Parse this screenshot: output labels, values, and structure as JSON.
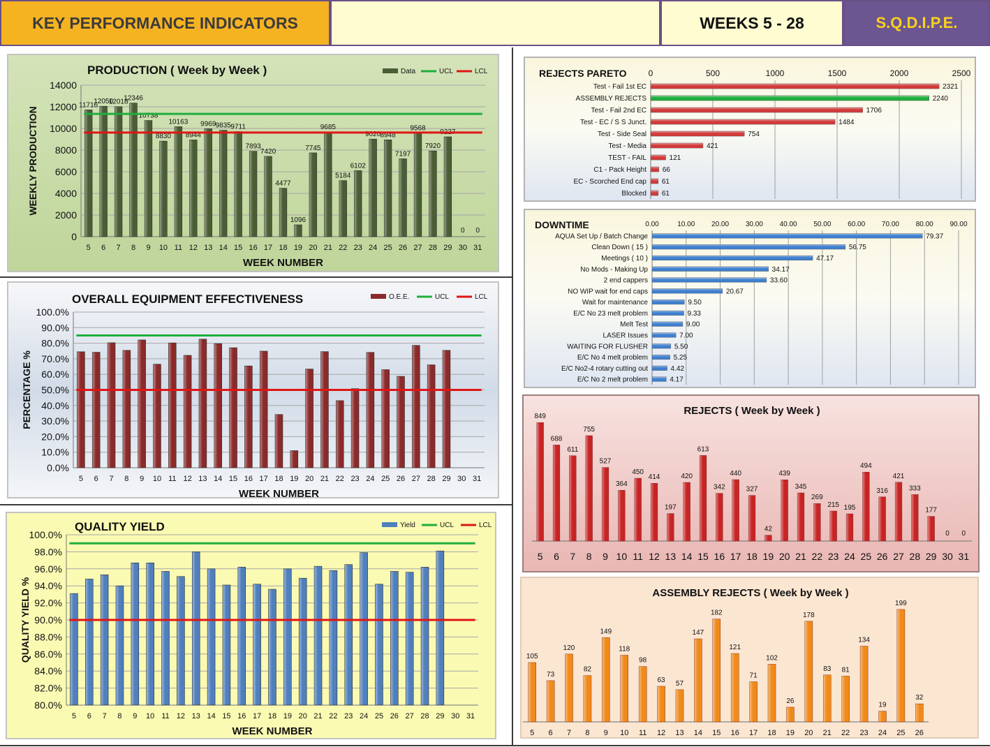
{
  "header": {
    "title": "KEY PERFORMANCE INDICATORS",
    "middle": "",
    "weeks": "WEEKS  5 - 28",
    "brand": "S.Q.D.I.P.E."
  },
  "chart_data": [
    {
      "id": "production",
      "type": "bar",
      "title": "PRODUCTION   ( Week by Week )",
      "xlabel": "WEEK NUMBER",
      "ylabel": "WEEKLY PRODUCTION",
      "categories": [
        "5",
        "6",
        "7",
        "8",
        "9",
        "10",
        "11",
        "12",
        "13",
        "14",
        "15",
        "16",
        "17",
        "18",
        "19",
        "20",
        "21",
        "22",
        "23",
        "24",
        "25",
        "26",
        "27",
        "28",
        "29",
        "30",
        "31"
      ],
      "values": [
        11716,
        12050,
        12018,
        12346,
        10738,
        8830,
        10163,
        8944,
        9969,
        9835,
        9711,
        7893,
        7420,
        4477,
        1096,
        7745,
        9685,
        5184,
        6102,
        9020,
        8948,
        7197,
        9568,
        7920,
        9227,
        0,
        0
      ],
      "ylim": [
        0,
        14000
      ],
      "yticks": [
        0,
        2000,
        4000,
        6000,
        8000,
        10000,
        12000,
        14000
      ],
      "ucl": 11350,
      "lcl": 9620,
      "legend": [
        "Data",
        "UCL",
        "LCL"
      ],
      "colors": {
        "bar": "#4a5e35",
        "ucl": "#1fae3e",
        "lcl": "#e01515"
      }
    },
    {
      "id": "oee",
      "type": "bar",
      "title": "OVERALL EQUIPMENT EFFECTIVENESS",
      "xlabel": "WEEK NUMBER",
      "ylabel": "PERCENTAGE  %",
      "categories": [
        "5",
        "6",
        "7",
        "8",
        "9",
        "10",
        "11",
        "12",
        "13",
        "14",
        "15",
        "16",
        "17",
        "18",
        "19",
        "20",
        "21",
        "22",
        "23",
        "24",
        "25",
        "26",
        "27",
        "28",
        "29",
        "30",
        "31"
      ],
      "values": [
        74.5,
        74.2,
        80.3,
        75.4,
        82.1,
        66.5,
        80.2,
        72.2,
        82.6,
        79.7,
        77.1,
        65.4,
        74.9,
        34.2,
        11.0,
        63.4,
        74.6,
        43.1,
        50.8,
        74.1,
        63.0,
        58.7,
        78.6,
        66.1,
        75.4,
        null,
        null
      ],
      "ylim": [
        0,
        100
      ],
      "yticks": [
        "0.0%",
        "10.0%",
        "20.0%",
        "30.0%",
        "40.0%",
        "50.0%",
        "60.0%",
        "70.0%",
        "80.0%",
        "90.0%",
        "100.0%"
      ],
      "ucl": 85,
      "lcl": 50,
      "legend": [
        "O.E.E.",
        "UCL",
        "LCL"
      ],
      "colors": {
        "bar": "#8b2a2a",
        "ucl": "#1fae3e",
        "lcl": "#e01515"
      }
    },
    {
      "id": "quality",
      "type": "bar",
      "title": "QUALITY YIELD",
      "xlabel": "WEEK NUMBER",
      "ylabel": "QUALITY YIELD  %",
      "categories": [
        "5",
        "6",
        "7",
        "8",
        "9",
        "10",
        "11",
        "12",
        "13",
        "14",
        "15",
        "16",
        "17",
        "18",
        "19",
        "20",
        "21",
        "22",
        "23",
        "24",
        "25",
        "26",
        "27",
        "28",
        "29",
        "30",
        "31"
      ],
      "values": [
        93.1,
        94.8,
        95.3,
        94.0,
        96.7,
        96.7,
        95.7,
        95.1,
        98.0,
        96.0,
        94.1,
        96.2,
        94.2,
        93.6,
        96.0,
        94.9,
        96.3,
        95.8,
        96.5,
        97.9,
        94.2,
        95.7,
        95.6,
        96.2,
        98.1,
        null,
        null
      ],
      "ylim": [
        80,
        100
      ],
      "yticks": [
        "80.0%",
        "82.0%",
        "84.0%",
        "86.0%",
        "88.0%",
        "90.0%",
        "92.0%",
        "94.0%",
        "96.0%",
        "98.0%",
        "100.0%"
      ],
      "ucl": 99,
      "lcl": 90,
      "legend": [
        "Yield",
        "UCL",
        "LCL"
      ],
      "colors": {
        "bar": "#4f7fbd",
        "ucl": "#1fae3e",
        "lcl": "#e01515"
      }
    },
    {
      "id": "pareto",
      "type": "bar",
      "orientation": "horizontal",
      "title": "REJECTS  PARETO",
      "categories": [
        "Test - Fail 1st EC",
        "ASSEMBLY REJECTS",
        "Test - Fail 2nd EC",
        "Test - EC / S S Junct.",
        "Test - Side Seal",
        "Test - Media",
        "TEST -  FAIL",
        "C1 - Pack Height",
        "EC - Scorched End cap",
        "Blocked"
      ],
      "values": [
        2321,
        2240,
        1706,
        1484,
        754,
        421,
        121,
        66,
        61,
        61
      ],
      "xlim": [
        0,
        2500
      ],
      "xticks": [
        "0",
        "500",
        "1000",
        "1500",
        "2000",
        "2500"
      ],
      "colors": {
        "bar": "#d23a3a",
        "highlight": "#1fae3e"
      }
    },
    {
      "id": "downtime",
      "type": "bar",
      "orientation": "horizontal",
      "title": "DOWNTIME",
      "categories": [
        "AQUA  Set Up / Batch Change",
        "Clean Down  ( 15 )",
        "Meetings  ( 10 )",
        "No Mods - Making Up",
        "2 end cappers",
        "NO WIP wait for end caps",
        "Wait for maintenance",
        "E/C No 23 melt problem",
        "Melt Test",
        "LASER Issues",
        "WAITING FOR FLUSHER",
        "E/C No 4 melt problem",
        "E/C No2-4 rotary cutting out",
        "E/C No 2 melt problem"
      ],
      "values": [
        79.37,
        56.75,
        47.17,
        34.17,
        33.6,
        20.67,
        9.5,
        9.33,
        9.0,
        7.0,
        5.5,
        5.25,
        4.42,
        4.17
      ],
      "value_labels": [
        "79.37",
        "56.75",
        "47.17",
        "34.17",
        "33.60",
        "20.67",
        "9.50",
        "9.33",
        "9.00",
        "7.00",
        "5.50",
        "5.25",
        "4.42",
        "4.17"
      ],
      "xlim": [
        0,
        90
      ],
      "xticks": [
        "0.00",
        "10.00",
        "20.00",
        "30.00",
        "40.00",
        "50.00",
        "60.00",
        "70.00",
        "80.00",
        "90.00"
      ],
      "colors": {
        "bar": "#3f7fcf"
      }
    },
    {
      "id": "rejects",
      "type": "bar",
      "title": "REJECTS  ( Week by Week )",
      "categories": [
        "5",
        "6",
        "7",
        "8",
        "9",
        "10",
        "11",
        "12",
        "13",
        "14",
        "15",
        "16",
        "17",
        "18",
        "19",
        "20",
        "21",
        "22",
        "23",
        "24",
        "25",
        "26",
        "27",
        "28",
        "29",
        "30",
        "31"
      ],
      "values": [
        849,
        688,
        611,
        755,
        527,
        364,
        450,
        414,
        197,
        420,
        613,
        342,
        440,
        327,
        42,
        439,
        345,
        269,
        215,
        195,
        494,
        316,
        421,
        333,
        177,
        0,
        0
      ],
      "ylim": [
        0,
        900
      ],
      "colors": {
        "bar": "#c82424"
      }
    },
    {
      "id": "assembly",
      "type": "bar",
      "title": "ASSEMBLY REJECTS   ( Week by Week )",
      "categories": [
        "5",
        "6",
        "7",
        "8",
        "9",
        "10",
        "11",
        "12",
        "13",
        "14",
        "15",
        "16",
        "17",
        "18",
        "19",
        "20",
        "21",
        "22",
        "23",
        "24",
        "25",
        "26"
      ],
      "values": [
        105,
        73,
        120,
        82,
        149,
        118,
        98,
        63,
        57,
        147,
        182,
        121,
        71,
        102,
        26,
        178,
        83,
        81,
        134,
        19,
        199,
        32
      ],
      "ylim": [
        0,
        210
      ],
      "colors": {
        "bar": "#f08a1a"
      }
    }
  ]
}
